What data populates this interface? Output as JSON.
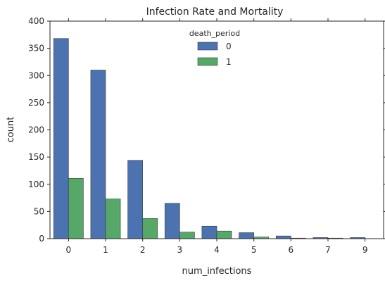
{
  "chart_data": {
    "type": "bar",
    "title": "Infection Rate and Mortality",
    "xlabel": "num_infections",
    "ylabel": "count",
    "categories": [
      "0",
      "1",
      "2",
      "3",
      "4",
      "5",
      "6",
      "7",
      "9"
    ],
    "ylim": [
      0,
      400
    ],
    "yticks": [
      0,
      50,
      100,
      150,
      200,
      250,
      300,
      350,
      400
    ],
    "grid": false,
    "legend": {
      "title": "death_period",
      "placement": "top-center"
    },
    "series": [
      {
        "name": "0",
        "color": "#4c72b0",
        "values": [
          368,
          310,
          144,
          65,
          23,
          11,
          5,
          2,
          2
        ]
      },
      {
        "name": "1",
        "color": "#55a868",
        "values": [
          111,
          73,
          37,
          12,
          14,
          3,
          1,
          1,
          0
        ]
      }
    ]
  }
}
